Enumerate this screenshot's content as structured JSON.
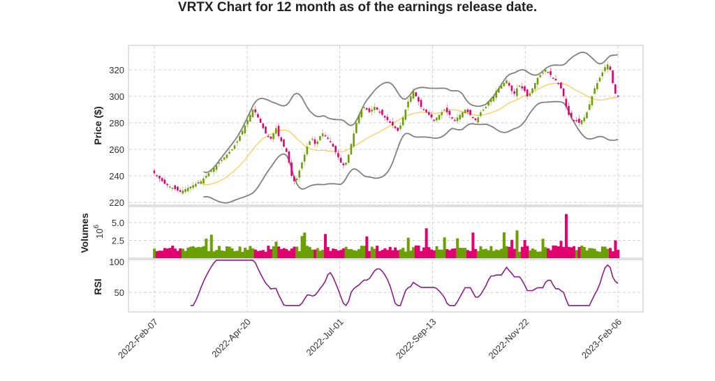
{
  "title": "VRTX Chart for 12 month as of the earnings release date.",
  "colors": {
    "up": "#6aa000",
    "down": "#e0006e",
    "bollinger": "#808080",
    "sma": "#ffc84a",
    "rsi": "#8b1a8f",
    "grid": "#d0d0d0",
    "frame": "#e0e0e0"
  },
  "chart_data": [
    {
      "type": "candlestick",
      "panel": "price",
      "ylabel": "Price ($)",
      "yticks": [
        220,
        240,
        260,
        280,
        300,
        320
      ],
      "ylim": [
        218,
        336
      ],
      "xticks": [
        "2022-Feb-07",
        "2022-Apr-20",
        "2022-Jul-01",
        "2022-Sep-13",
        "2022-Nov-22",
        "2023-Feb-06"
      ],
      "close_approx": [
        242,
        240,
        238,
        236,
        234,
        233,
        232,
        231,
        230,
        229,
        228,
        229,
        230,
        231,
        232,
        233,
        234,
        235,
        236,
        238,
        240,
        242,
        244,
        246,
        248,
        250,
        252,
        254,
        256,
        258,
        260,
        263,
        266,
        270,
        274,
        278,
        282,
        286,
        290,
        288,
        284,
        280,
        276,
        272,
        270,
        268,
        272,
        276,
        270,
        266,
        262,
        258,
        250,
        240,
        236,
        238,
        244,
        250,
        256,
        262,
        266,
        268,
        264,
        266,
        270,
        272,
        270,
        268,
        266,
        262,
        258,
        254,
        250,
        248,
        250,
        256,
        264,
        272,
        280,
        286,
        290,
        292,
        290,
        288,
        290,
        292,
        290,
        288,
        286,
        284,
        282,
        280,
        278,
        276,
        274,
        278,
        284,
        290,
        296,
        300,
        304,
        300,
        296,
        292,
        290,
        288,
        286,
        284,
        282,
        284,
        286,
        288,
        290,
        288,
        286,
        284,
        282,
        284,
        286,
        288,
        290,
        288,
        286,
        284,
        282,
        284,
        288,
        290,
        292,
        296,
        298,
        300,
        304,
        306,
        308,
        310,
        312,
        308,
        304,
        302,
        306,
        308,
        306,
        304,
        300,
        302,
        306,
        310,
        314,
        316,
        318,
        320,
        318,
        316,
        314,
        312,
        310,
        306,
        300,
        292,
        286,
        284,
        282,
        282,
        280,
        282,
        284,
        288,
        294,
        300,
        306,
        310,
        314,
        318,
        322,
        324,
        320,
        310,
        302,
        300
      ],
      "bollinger_upper_approx": "upper band from ~232 (Mar) rising to ~296 (Apr-20), ~306 (May), falling to ~290, rising to ~316 (Jul), ~296-304 (Sep), ~318-324 (Nov-Dec), dip to ~296 (Jan), peak ~331 (Feb)",
      "sma20_approx": "middle line from ~232 (Mar) to ~278 (May), ~258 (Jun), ~282 (Jul-Aug), ~290 (Sep), ~306-312 (Dec), ~292 (Jan), ~306 (Feb)",
      "bollinger_lower_approx": "lower band from ~226 (Mar) to ~280 (Apr-20), ~236 (Jun), ~274 (Aug), ~270-280 (Sep-Oct), ~290-300 (Nov), ~274 (Jan), ~286 (Feb)"
    },
    {
      "type": "bar",
      "panel": "volume",
      "ylabel": "Volumes",
      "yscale_label": "10^6",
      "yticks": [
        2.5,
        5.0
      ],
      "ylim": [
        0,
        6.2
      ],
      "spikes": [
        {
          "date_approx": "2022-Nov-30",
          "value": 6.2
        },
        {
          "date_approx": "2022-Jun-10",
          "value": 4.2
        },
        {
          "date_approx": "2022-Oct-25",
          "value": 3.9
        }
      ]
    },
    {
      "type": "line",
      "panel": "rsi",
      "ylabel": "RSI",
      "yticks": [
        50,
        100
      ],
      "ylim": [
        30,
        100
      ]
    }
  ]
}
